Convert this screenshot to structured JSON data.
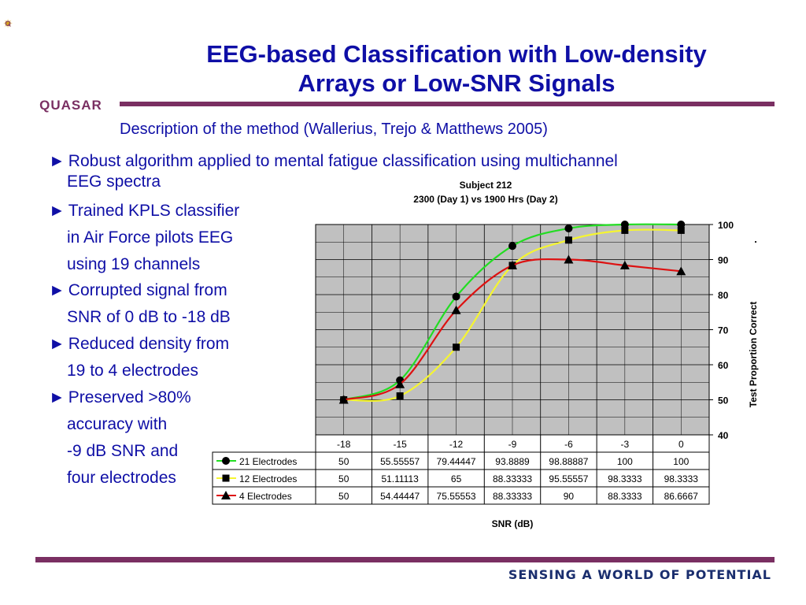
{
  "logo": {
    "text": "QUASAR"
  },
  "slide": {
    "title_line1": "EEG-based Classification with Low-density",
    "title_line2": "Arrays or Low-SNR Signals",
    "subtitle": "Description of the method (Wallerius, Trejo & Matthews 2005)",
    "bullet_marker": "►",
    "bullets": [
      {
        "lines": [
          "Robust algorithm applied to mental fatigue classification using multichannel",
          "EEG spectra"
        ]
      },
      {
        "lines": [
          "Trained KPLS classifier",
          "in Air Force pilots EEG",
          "using 19 channels"
        ]
      },
      {
        "lines": [
          "Corrupted signal from",
          "SNR of 0 dB to -18 dB"
        ]
      },
      {
        "lines": [
          "Reduced density from",
          "19 to 4 electrodes"
        ]
      },
      {
        "lines": [
          "Preserved >80%",
          "accuracy with",
          "-9 dB SNR and",
          "four electrodes"
        ]
      }
    ],
    "footer": "SENSING A WORLD OF POTENTIAL"
  },
  "colors": {
    "brand_purple": "#7a2f62",
    "title_blue": "#0f0fa6",
    "plot_bg": "#c0c0c0",
    "series21": "#22dd22",
    "series12": "#f5f530",
    "series4": "#dd1111"
  },
  "chart_data": {
    "type": "line",
    "title": "Subject 212",
    "subtitle": "2300 (Day 1) vs 1900 Hrs (Day 2)",
    "xlabel": "SNR (dB)",
    "ylabel": "Test Proportion Correct",
    "categories": [
      "-18",
      "-15",
      "-12",
      "-9",
      "-6",
      "-3",
      "0"
    ],
    "ylim": [
      40,
      100
    ],
    "yticks": [
      40,
      50,
      60,
      70,
      80,
      90,
      100
    ],
    "grid": true,
    "y_axis_side": "right",
    "legend": "data-table",
    "stray_mark": ".",
    "series": [
      {
        "name": "21 Electrodes",
        "marker": "circle",
        "color": "#22dd22",
        "values": [
          50,
          55.55557,
          79.44447,
          93.8889,
          98.88887,
          100,
          100
        ],
        "labels": [
          "50",
          "55.55557",
          "79.44447",
          "93.8889",
          "98.88887",
          "100",
          "100"
        ]
      },
      {
        "name": "12 Electrodes",
        "marker": "square",
        "color": "#f5f530",
        "values": [
          50,
          51.11113,
          65,
          88.33333,
          95.55557,
          98.3333,
          98.3333
        ],
        "labels": [
          "50",
          "51.11113",
          "65",
          "88.33333",
          "95.55557",
          "98.3333",
          "98.3333"
        ]
      },
      {
        "name": "4 Electrodes",
        "marker": "triangle",
        "color": "#dd1111",
        "values": [
          50,
          54.44447,
          75.55553,
          88.33333,
          90,
          88.3333,
          86.6667
        ],
        "labels": [
          "50",
          "54.44447",
          "75.55553",
          "88.33333",
          "90",
          "88.3333",
          "86.6667"
        ]
      }
    ]
  }
}
